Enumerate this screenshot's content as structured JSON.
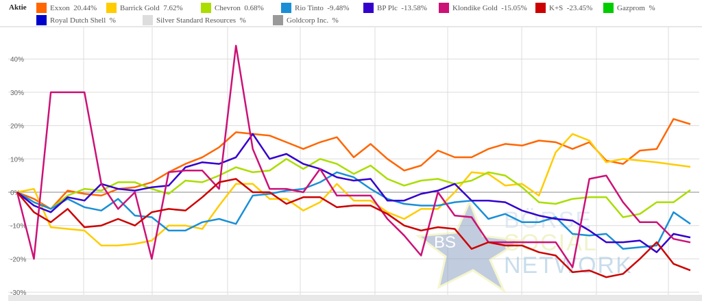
{
  "legend": {
    "title": "Aktie",
    "items": [
      {
        "name": "Exxon",
        "change": "20.44%",
        "color": "#ff6600"
      },
      {
        "name": "Barrick Gold",
        "change": "7.62%",
        "color": "#ffcc00"
      },
      {
        "name": "Chevron",
        "change": "0.68%",
        "color": "#aadd00"
      },
      {
        "name": "Rio Tinto",
        "change": "-9.48%",
        "color": "#1a8fd6"
      },
      {
        "name": "BP Plc",
        "change": "-13.58%",
        "color": "#3300cc"
      },
      {
        "name": "Klondike Gold",
        "change": "-15.05%",
        "color": "#cc1177"
      },
      {
        "name": "K+S",
        "change": "-23.45%",
        "color": "#cc0000"
      },
      {
        "name": "Gazprom",
        "change": "%",
        "color": "#00cc00"
      },
      {
        "name": "Royal Dutch Shell",
        "change": "%",
        "color": "#0000cc"
      },
      {
        "name": "Silver Standard Resources",
        "change": "%",
        "color": "#dddddd"
      },
      {
        "name": "Goldcorp Inc.",
        "change": "%",
        "color": "#999999"
      }
    ]
  },
  "watermark": {
    "text_lines": [
      "BÖRSE",
      "SOCIAL",
      "NETWORK"
    ],
    "star_text": "BS"
  },
  "chart_data": {
    "type": "line",
    "ylim": [
      -30,
      45
    ],
    "yticks": [
      "40%",
      "30%",
      "20%",
      "10%",
      "0%",
      "-10%",
      "-20%",
      "-30%"
    ],
    "ytick_values": [
      40,
      30,
      20,
      10,
      0,
      -10,
      -20,
      -30
    ],
    "grid": true,
    "legend_placement": "top",
    "series": [
      {
        "name": "Exxon",
        "color": "#ff6600",
        "values": [
          0,
          -2,
          -5,
          0.5,
          -0.5,
          -1,
          1,
          1.5,
          3,
          6,
          8.5,
          10.5,
          13.5,
          18,
          17.5,
          17,
          15,
          13,
          15,
          16.5,
          10.5,
          14.5,
          10,
          6.5,
          8,
          12.5,
          10.5,
          10.5,
          13,
          14.5,
          14,
          15.5,
          15,
          13,
          15,
          9.5,
          8.5,
          12.5,
          13,
          22,
          20.44
        ]
      },
      {
        "name": "Barrick Gold",
        "color": "#ffcc00",
        "values": [
          0,
          1,
          -10.5,
          -11,
          -11.5,
          -16,
          -16,
          -15.5,
          -14.5,
          -10,
          -10,
          -11,
          -4,
          2.5,
          2.5,
          -2,
          -2,
          -5.5,
          -3,
          2.5,
          -2.5,
          -2.5,
          -6,
          -8,
          -5,
          -5,
          0,
          6,
          5.5,
          2,
          2.5,
          -1,
          12,
          17.5,
          15.5,
          9,
          10,
          9.5,
          9,
          8.3,
          7.62
        ]
      },
      {
        "name": "Chevron",
        "color": "#aadd00",
        "values": [
          0,
          -3,
          -5,
          -1,
          1,
          0.5,
          3,
          3,
          1,
          -0.5,
          3.5,
          3,
          5,
          7.5,
          6,
          6.5,
          10,
          7,
          10,
          8.5,
          5.5,
          8,
          4,
          2,
          3.5,
          4,
          2.5,
          3.5,
          6,
          5,
          1.5,
          -3,
          -3.5,
          -2,
          -1.5,
          -1.5,
          -7.5,
          -6.5,
          -3,
          -3,
          0.68
        ]
      },
      {
        "name": "Rio Tinto",
        "color": "#1a8fd6",
        "values": [
          0,
          -3,
          -5,
          -2,
          -4.5,
          -5.5,
          -2,
          -7,
          -7.5,
          -11.5,
          -11.5,
          -9,
          -8,
          -9.5,
          -1,
          -0.5,
          0.5,
          1,
          3,
          6,
          4.5,
          1,
          -2,
          -3.5,
          -4,
          -4,
          -3,
          -2.5,
          -8,
          -6.5,
          -9,
          -9,
          -7.5,
          -12.5,
          -13,
          -12.5,
          -17,
          -16.5,
          -16,
          -6,
          -9.48
        ]
      },
      {
        "name": "BP Plc",
        "color": "#3300cc",
        "values": [
          0,
          -4,
          -6,
          -1.5,
          -2.5,
          2.5,
          1,
          0.5,
          1.5,
          2,
          7.5,
          9,
          8.5,
          10.5,
          17.5,
          10,
          11.5,
          8.5,
          7,
          4.5,
          3.5,
          4,
          -2.5,
          -2.5,
          -0.5,
          0.5,
          2.5,
          -2.5,
          -2.5,
          -3,
          -5.5,
          -7,
          -8,
          -8.5,
          -11.5,
          -15,
          -15,
          -14.5,
          -18,
          -12.5,
          -13.58
        ]
      },
      {
        "name": "Klondike Gold",
        "color": "#cc1177",
        "values": [
          0,
          -20,
          30,
          30,
          30,
          2.5,
          -5,
          0,
          -20,
          6,
          6.5,
          6.5,
          1,
          44,
          13,
          1,
          1,
          0,
          7,
          -1,
          -1,
          -1,
          -8,
          -13,
          -19,
          0,
          -7,
          -7.5,
          -15,
          -15,
          -15,
          -15,
          -15,
          -22.5,
          4,
          5,
          -3,
          -9,
          -9,
          -14,
          -15.05
        ]
      },
      {
        "name": "K+S",
        "color": "#cc0000",
        "values": [
          0,
          -6,
          -9,
          -5,
          -10.5,
          -10,
          -8,
          -10,
          -6,
          -5,
          -5.5,
          -1.5,
          3,
          4,
          0,
          0,
          -3.5,
          -1.5,
          -1.5,
          -4.5,
          -4,
          -4,
          -6.5,
          -10,
          -11.5,
          -10.5,
          -11,
          -17,
          -15,
          -16,
          -16,
          -18,
          -19,
          -24,
          -23.5,
          -25.5,
          -24.5,
          -20,
          -15,
          -21.5,
          -23.45
        ]
      }
    ]
  }
}
